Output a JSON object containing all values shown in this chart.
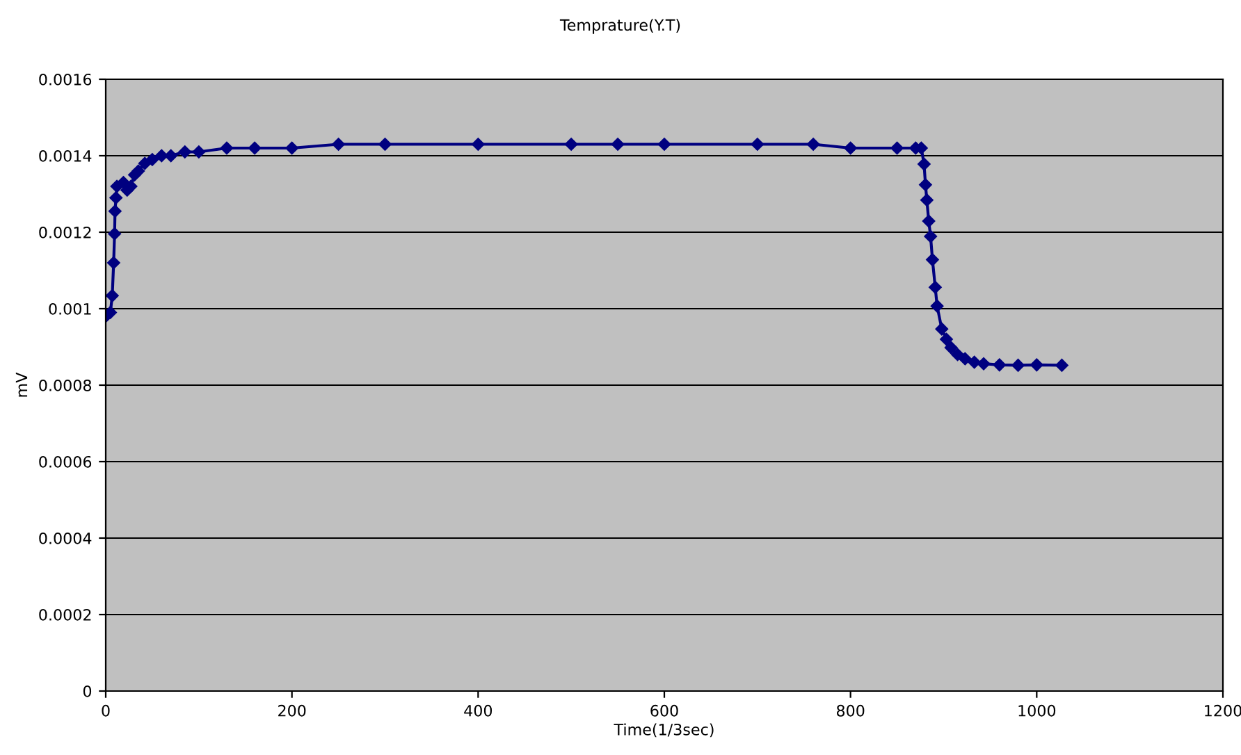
{
  "chart_data": {
    "type": "line",
    "title": "Temprature(Y.T)",
    "xlabel": "Time(1/3sec)",
    "ylabel": "mV",
    "xlim": [
      0,
      1200
    ],
    "xticks": [
      0,
      200,
      400,
      600,
      800,
      1000,
      1200
    ],
    "ylim": [
      0,
      0.0016
    ],
    "yticks": [
      0,
      0.0002,
      0.0004,
      0.0006,
      0.0008,
      0.001,
      0.0012,
      0.0014,
      0.0016
    ],
    "grid": "y",
    "marker": "diamond",
    "line_style": "solid",
    "legend": false,
    "series": [
      {
        "color": "#000080",
        "x": [
          0,
          5,
          7,
          8.5,
          9.5,
          10,
          11,
          12,
          19,
          23,
          27,
          31,
          35,
          42,
          50,
          60,
          70,
          85,
          100,
          130,
          160,
          200,
          250,
          300,
          400,
          500,
          550,
          600,
          700,
          760,
          800,
          850,
          870,
          876,
          879,
          880.5,
          882,
          884,
          886,
          888,
          891,
          893,
          898,
          903,
          908,
          915,
          923,
          933,
          943,
          960,
          980,
          1000,
          1027
        ],
        "values": [
          0.00098,
          0.00099,
          0.001034,
          0.00112,
          0.001196,
          0.001255,
          0.00129,
          0.00132,
          0.00133,
          0.00131,
          0.00132,
          0.00135,
          0.00136,
          0.00138,
          0.00139,
          0.0014,
          0.0014,
          0.00141,
          0.00141,
          0.00142,
          0.00142,
          0.00142,
          0.00143,
          0.00143,
          0.00143,
          0.00143,
          0.00143,
          0.00143,
          0.00143,
          0.00143,
          0.00142,
          0.00142,
          0.00142,
          0.00142,
          0.001378,
          0.001324,
          0.001284,
          0.001229,
          0.001189,
          0.001128,
          0.001056,
          0.001007,
          0.000947,
          0.00092,
          0.000898,
          0.00088,
          0.000869,
          0.00086,
          0.000856,
          0.000853,
          0.000852,
          0.000853,
          0.000852
        ]
      }
    ]
  }
}
